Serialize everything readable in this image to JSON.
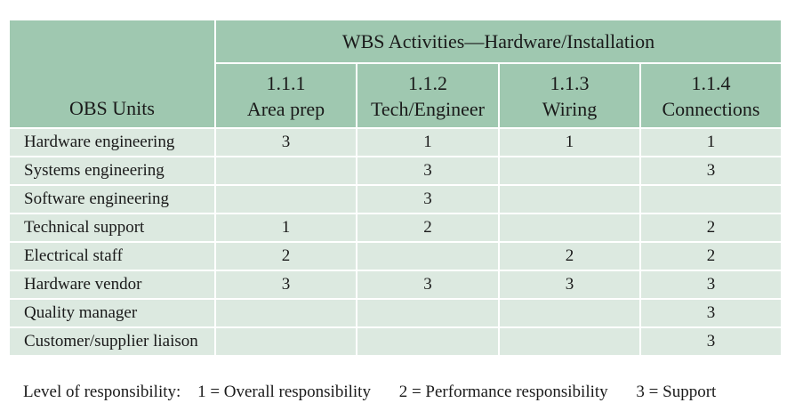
{
  "header": {
    "obs_label": "OBS Units",
    "wbs_label": "WBS Activities—Hardware/Installation",
    "activities": [
      {
        "code": "1.1.1",
        "name": "Area prep"
      },
      {
        "code": "1.1.2",
        "name": "Tech/Engineer"
      },
      {
        "code": "1.1.3",
        "name": "Wiring"
      },
      {
        "code": "1.1.4",
        "name": "Connections"
      }
    ]
  },
  "rows": [
    {
      "unit": "Hardware engineering",
      "values": [
        "3",
        "1",
        "1",
        "1"
      ]
    },
    {
      "unit": "Systems engineering",
      "values": [
        "",
        "3",
        "",
        "3"
      ]
    },
    {
      "unit": "Software engineering",
      "values": [
        "",
        "3",
        "",
        ""
      ]
    },
    {
      "unit": "Technical support",
      "values": [
        "1",
        "2",
        "",
        "2"
      ]
    },
    {
      "unit": "Electrical staff",
      "values": [
        "2",
        "",
        "2",
        "2"
      ]
    },
    {
      "unit": "Hardware vendor",
      "values": [
        "3",
        "3",
        "3",
        "3"
      ]
    },
    {
      "unit": "Quality manager",
      "values": [
        "",
        "",
        "",
        "3"
      ]
    },
    {
      "unit": "Customer/supplier liaison",
      "values": [
        "",
        "",
        "",
        "3"
      ]
    }
  ],
  "legend": {
    "title": "Level of responsibility:",
    "items": [
      "1 = Overall responsibility",
      "2 = Performance responsibility",
      "3 = Support"
    ]
  },
  "colors": {
    "header_bg": "#9fc8b0",
    "body_bg": "#dce9e0",
    "grid_lines": "#ffffff"
  }
}
